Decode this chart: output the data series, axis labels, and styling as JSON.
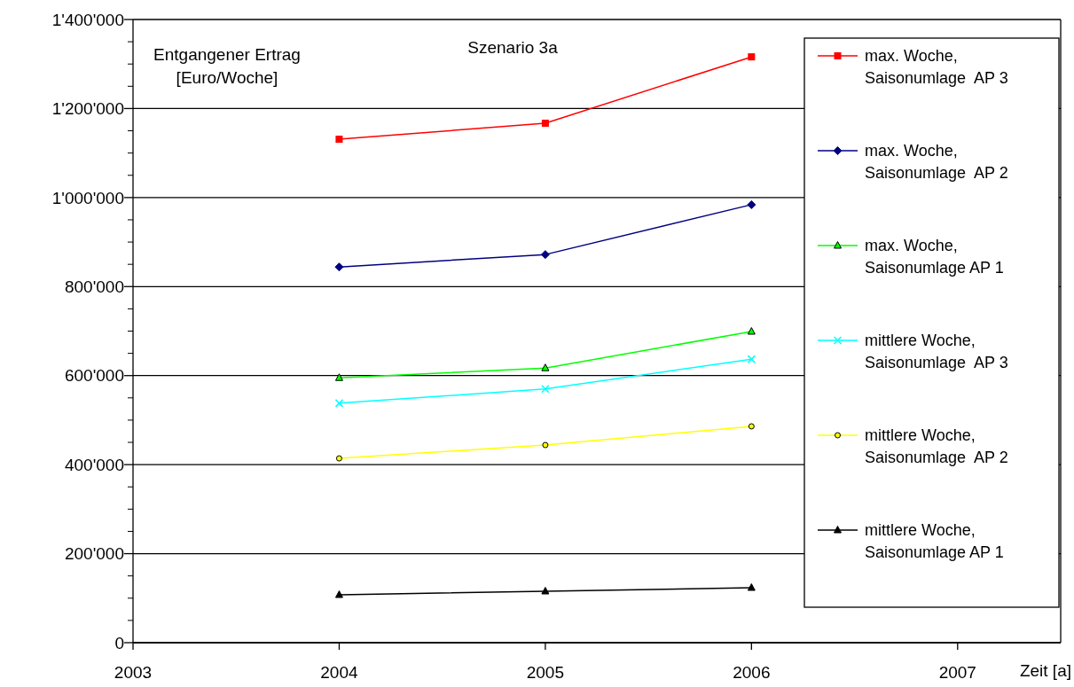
{
  "chart_data": {
    "type": "line",
    "title": "Szenario 3a",
    "ylabel": "Entgangener Ertrag [Euro/Woche]",
    "xlabel": "Zeit [a]",
    "x": [
      2004,
      2005,
      2006
    ],
    "xlim": [
      2003,
      2007.5
    ],
    "xticks": [
      2003,
      2004,
      2005,
      2006,
      2007
    ],
    "ylim": [
      0,
      1400000
    ],
    "yticks": [
      0,
      {
        "value": 200000,
        "label": "200'000"
      },
      {
        "value": 400000,
        "label": "400'000"
      },
      {
        "value": 600000,
        "label": "600'000"
      },
      {
        "value": 800000,
        "label": "800'000"
      },
      {
        "value": 1000000,
        "label": "1'000'000"
      },
      {
        "value": 1200000,
        "label": "1'200'000"
      },
      {
        "value": 1400000,
        "label": "1'400'000"
      }
    ],
    "grid": "y",
    "legend": "right",
    "series": [
      {
        "name": "max. Woche, Saisonumlage  AP 3",
        "color": "#ff0000",
        "marker": "square",
        "values": [
          1131000,
          1167000,
          1316000
        ]
      },
      {
        "name": "max. Woche, Saisonumlage  AP 2",
        "color": "#000080",
        "marker": "diamond",
        "values": [
          844000,
          872000,
          984000
        ]
      },
      {
        "name": "max. Woche, Saisonumlage AP 1",
        "color": "#00ff00",
        "marker": "triangle",
        "values": [
          595000,
          617000,
          699000
        ]
      },
      {
        "name": "mittlere Woche, Saisonumlage  AP 3",
        "color": "#00ffff",
        "marker": "cross",
        "values": [
          538000,
          570000,
          637000
        ]
      },
      {
        "name": "mittlere Woche, Saisonumlage  AP 2",
        "color": "#ffff00",
        "marker": "circle",
        "values": [
          414000,
          444000,
          486000
        ]
      },
      {
        "name": "mittlere Woche, Saisonumlage AP 1",
        "color": "#000000",
        "marker": "triangle",
        "values": [
          107500,
          115500,
          123500
        ]
      }
    ]
  }
}
